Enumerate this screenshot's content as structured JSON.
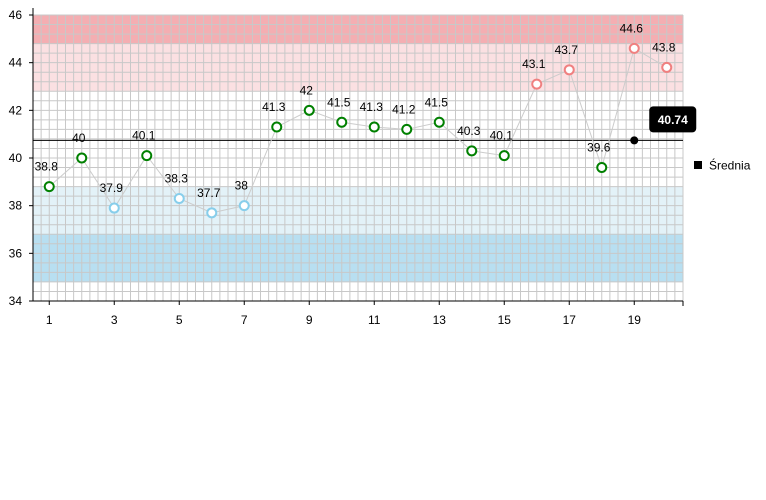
{
  "chart_data": {
    "type": "line",
    "x": [
      1,
      2,
      3,
      4,
      5,
      6,
      7,
      8,
      9,
      10,
      11,
      12,
      13,
      14,
      15,
      16,
      17,
      18,
      19,
      20
    ],
    "x_tick_labels": [
      "1",
      "3",
      "5",
      "7",
      "9",
      "11",
      "13",
      "15",
      "17",
      "19"
    ],
    "y_tick_labels": [
      "34",
      "36",
      "38",
      "40",
      "42",
      "44",
      "46"
    ],
    "ylim": [
      34,
      46
    ],
    "xlim": [
      0.5,
      20.5
    ],
    "grid": true,
    "series": [
      {
        "values": [
          38.8,
          40,
          37.9,
          40.1,
          38.3,
          37.7,
          38,
          41.3,
          42,
          41.5,
          41.3,
          41.2,
          41.5,
          40.3,
          40.1,
          43.1,
          43.7,
          39.6,
          44.6,
          43.8
        ],
        "labels": [
          "38.8",
          "40",
          "37.9",
          "40.1",
          "38.3",
          "37.7",
          "38",
          "41.3",
          "42",
          "41.5",
          "41.3",
          "41.2",
          "41.5",
          "40.3",
          "40.1",
          "43.1",
          "43.7",
          "39.6",
          "44.6",
          "43.8"
        ]
      }
    ],
    "average": {
      "name": "Średnia",
      "value": 40.74,
      "label": "40.74",
      "marker_x": 19
    },
    "bands": [
      {
        "from": 44.8,
        "to": 46,
        "color": "#f4aeb2"
      },
      {
        "from": 42.8,
        "to": 44.8,
        "color": "#fbe0e2"
      },
      {
        "from": 36.8,
        "to": 38.8,
        "color": "#e3f2f8"
      },
      {
        "from": 34.8,
        "to": 36.8,
        "color": "#b8dff1"
      }
    ],
    "thresholds": {
      "high": 42.8,
      "low": 38.8
    },
    "colors": {
      "normal": "#008000",
      "high": "#f08080",
      "low": "#87ceeb",
      "line": "#cccccc",
      "average": "#000000"
    },
    "legend": {
      "position": "right",
      "entries": [
        "Średnia"
      ]
    }
  }
}
